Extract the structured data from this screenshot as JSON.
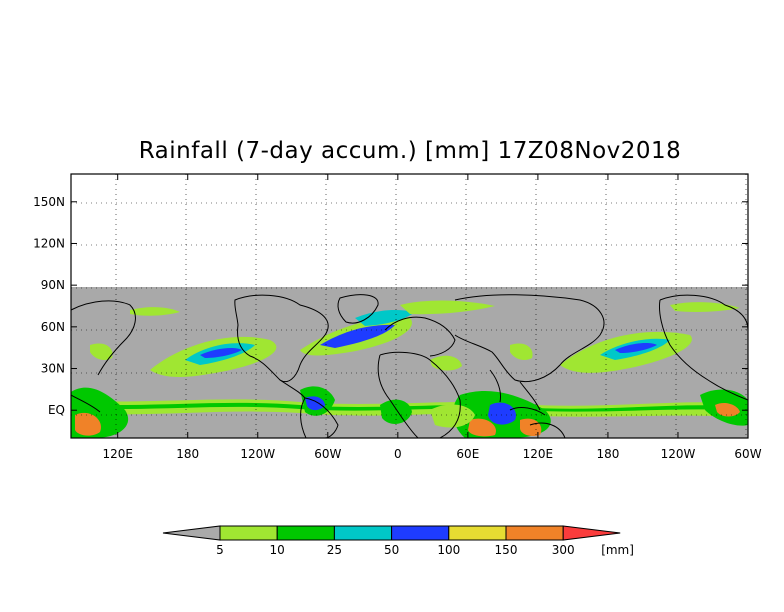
{
  "title": "Rainfall (7-day accum.) [mm] 17Z08Nov2018",
  "y_axis_labels": [
    "150N",
    "120N",
    "90N",
    "60N",
    "30N",
    "EQ"
  ],
  "y_axis_values": [
    150,
    120,
    90,
    60,
    30,
    0
  ],
  "x_axis_labels": [
    "120E",
    "180",
    "120W",
    "60W",
    "0",
    "60E",
    "120E",
    "180",
    "120W",
    "60W"
  ],
  "x_axis_values": [
    120,
    180,
    240,
    300,
    360,
    420,
    480,
    540,
    600,
    660
  ],
  "lon_range": [
    80,
    660
  ],
  "lat_range": [
    -20,
    170
  ],
  "no_data_above_lat": 90,
  "colorbar": {
    "levels": [
      "5",
      "10",
      "25",
      "50",
      "100",
      "150",
      "300"
    ],
    "unit": "[mm]",
    "colors": [
      "#aaaaaa",
      "#a0e632",
      "#00c800",
      "#00c8c8",
      "#1e3cff",
      "#e6dc32",
      "#f08228",
      "#fa3c3c"
    ]
  },
  "colors": {
    "ocean_land_background": "#a9a9a9",
    "above_data": "#ffffff",
    "coastline": "#000000"
  }
}
